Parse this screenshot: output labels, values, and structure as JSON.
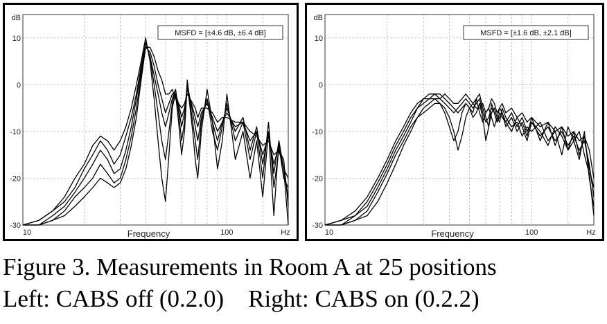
{
  "chart_data": [
    {
      "type": "line",
      "panel": "left",
      "ylabel_unit": "dB",
      "xlabel": "Frequency",
      "xunit": "Hz",
      "x_scale": "log",
      "xlim": [
        10,
        200
      ],
      "ylim": [
        -30,
        15
      ],
      "x_tick_labels": [
        "10",
        "100"
      ],
      "y_ticks": [
        10,
        0,
        -10,
        -20,
        -30
      ],
      "grid": true,
      "annotation": "MSFD = [±4.6 dB, ±6.4 dB]",
      "annotation_position": "top-right",
      "x": [
        10,
        12,
        14,
        16,
        18,
        20,
        22,
        24,
        26,
        28,
        30,
        32,
        34,
        36,
        38,
        40,
        42,
        44,
        46,
        48,
        50,
        52,
        54,
        56,
        58,
        60,
        62,
        64,
        66,
        68,
        70,
        72,
        75,
        80,
        85,
        90,
        95,
        100,
        110,
        120,
        130,
        140,
        150,
        160,
        170,
        180,
        190,
        200
      ],
      "series": [
        {
          "values": [
            -30,
            -29,
            -27,
            -24,
            -20,
            -17,
            -13,
            -11,
            -12,
            -14,
            -12,
            -9,
            -5,
            0,
            5,
            10,
            5,
            -3,
            -12,
            -20,
            -25,
            -15,
            -5,
            -2,
            -8,
            -15,
            -10,
            0,
            -5,
            -10,
            -16,
            -20,
            -10,
            -1,
            -8,
            -18,
            -12,
            -2,
            -16,
            -10,
            -20,
            -12,
            -24,
            -10,
            -28,
            -12,
            -18,
            -30
          ]
        },
        {
          "values": [
            -30,
            -29,
            -27,
            -25,
            -22,
            -18,
            -15,
            -12,
            -14,
            -17,
            -15,
            -11,
            -7,
            -2,
            4,
            9,
            6,
            0,
            -6,
            -12,
            -16,
            -10,
            -4,
            -1,
            -6,
            -12,
            -8,
            1,
            -4,
            -8,
            -12,
            -16,
            -8,
            -3,
            -10,
            -14,
            -9,
            -4,
            -12,
            -8,
            -16,
            -10,
            -20,
            -8,
            -22,
            -14,
            -16,
            -26
          ]
        },
        {
          "values": [
            -30,
            -30,
            -28,
            -26,
            -23,
            -20,
            -17,
            -14,
            -16,
            -19,
            -18,
            -14,
            -9,
            -3,
            3,
            9,
            6,
            2,
            -2,
            -6,
            -9,
            -6,
            -3,
            -1,
            -5,
            -9,
            -6,
            0,
            -3,
            -6,
            -9,
            -12,
            -7,
            -3,
            -8,
            -12,
            -8,
            -5,
            -10,
            -7,
            -14,
            -9,
            -17,
            -10,
            -19,
            -12,
            -18,
            -24
          ]
        },
        {
          "values": [
            -30,
            -30,
            -29,
            -27,
            -24,
            -22,
            -20,
            -17,
            -19,
            -21,
            -20,
            -16,
            -11,
            -5,
            2,
            8,
            7,
            4,
            0,
            -3,
            -6,
            -4,
            -2,
            -2,
            -4,
            -7,
            -5,
            -1,
            -3,
            -5,
            -7,
            -9,
            -6,
            -4,
            -7,
            -10,
            -8,
            -6,
            -9,
            -8,
            -12,
            -10,
            -15,
            -11,
            -17,
            -13,
            -20,
            -22
          ]
        },
        {
          "values": [
            -30,
            -30,
            -29,
            -28,
            -26,
            -24,
            -22,
            -20,
            -21,
            -22,
            -21,
            -18,
            -13,
            -7,
            1,
            8,
            8,
            6,
            3,
            1,
            -2,
            -2,
            -1,
            -3,
            -4,
            -5,
            -4,
            -2,
            -3,
            -4,
            -5,
            -7,
            -5,
            -5,
            -6,
            -8,
            -7,
            -7,
            -8,
            -8,
            -10,
            -11,
            -13,
            -12,
            -15,
            -14,
            -18,
            -20
          ]
        }
      ]
    },
    {
      "type": "line",
      "panel": "right",
      "ylabel_unit": "dB",
      "xlabel": "Frequency",
      "xunit": "Hz",
      "x_scale": "log",
      "xlim": [
        10,
        200
      ],
      "ylim": [
        -30,
        15
      ],
      "x_tick_labels": [
        "10",
        "100"
      ],
      "y_ticks": [
        10,
        0,
        -10,
        -20,
        -30
      ],
      "grid": true,
      "annotation": "MSFD = [±1.6 dB, ±2.1 dB]",
      "annotation_position": "top-right",
      "x": [
        10,
        12,
        14,
        16,
        18,
        20,
        22,
        24,
        26,
        28,
        30,
        32,
        34,
        36,
        38,
        40,
        42,
        44,
        46,
        48,
        50,
        52,
        54,
        56,
        58,
        60,
        62,
        64,
        66,
        68,
        70,
        72,
        75,
        80,
        85,
        90,
        95,
        100,
        110,
        120,
        130,
        140,
        150,
        160,
        170,
        180,
        190,
        200
      ],
      "series": [
        {
          "values": [
            -30,
            -29,
            -28,
            -25,
            -21,
            -17,
            -13,
            -10,
            -7,
            -5,
            -3,
            -2,
            -2,
            -3,
            -4,
            -5,
            -6,
            -5,
            -4,
            -3,
            -4,
            -5,
            -4,
            -3,
            -6,
            -8,
            -7,
            -5,
            -6,
            -8,
            -7,
            -6,
            -9,
            -7,
            -10,
            -8,
            -11,
            -7,
            -12,
            -8,
            -13,
            -9,
            -14,
            -10,
            -15,
            -11,
            -18,
            -22
          ]
        },
        {
          "values": [
            -30,
            -29,
            -27,
            -24,
            -20,
            -16,
            -12,
            -9,
            -6,
            -4,
            -3,
            -3,
            -3,
            -4,
            -6,
            -9,
            -12,
            -10,
            -6,
            -4,
            -5,
            -6,
            -3,
            -2,
            -5,
            -7,
            -9,
            -6,
            -5,
            -7,
            -8,
            -5,
            -7,
            -9,
            -8,
            -11,
            -9,
            -10,
            -8,
            -12,
            -10,
            -15,
            -9,
            -12,
            -16,
            -10,
            -20,
            -26
          ]
        },
        {
          "values": [
            -30,
            -30,
            -28,
            -26,
            -22,
            -18,
            -14,
            -11,
            -8,
            -5,
            -4,
            -3,
            -2,
            -2,
            -3,
            -4,
            -5,
            -6,
            -5,
            -4,
            -5,
            -7,
            -6,
            -4,
            -7,
            -12,
            -9,
            -4,
            -6,
            -8,
            -6,
            -7,
            -8,
            -6,
            -9,
            -7,
            -10,
            -8,
            -11,
            -9,
            -12,
            -10,
            -13,
            -11,
            -14,
            -12,
            -17,
            -24
          ]
        },
        {
          "values": [
            -30,
            -30,
            -29,
            -27,
            -23,
            -19,
            -15,
            -12,
            -9,
            -7,
            -5,
            -4,
            -3,
            -3,
            -2,
            -3,
            -4,
            -4,
            -3,
            -2,
            -3,
            -4,
            -5,
            -5,
            -4,
            -6,
            -5,
            -3,
            -4,
            -6,
            -5,
            -4,
            -6,
            -5,
            -7,
            -6,
            -8,
            -7,
            -9,
            -8,
            -10,
            -9,
            -11,
            -10,
            -12,
            -11,
            -14,
            -20
          ]
        },
        {
          "values": [
            -30,
            -30,
            -29,
            -28,
            -25,
            -21,
            -17,
            -13,
            -10,
            -7,
            -6,
            -5,
            -4,
            -4,
            -5,
            -7,
            -10,
            -14,
            -11,
            -7,
            -5,
            -4,
            -3,
            -6,
            -8,
            -6,
            -5,
            -7,
            -9,
            -7,
            -5,
            -6,
            -8,
            -10,
            -7,
            -9,
            -12,
            -8,
            -10,
            -13,
            -9,
            -11,
            -14,
            -12,
            -10,
            -15,
            -19,
            -28
          ]
        }
      ]
    }
  ],
  "caption": {
    "line1": "Figure 3. Measurements in Room A at 25 positions",
    "line2": "Left: CABS off (0.2.0)    Right: CABS on (0.2.2)"
  }
}
